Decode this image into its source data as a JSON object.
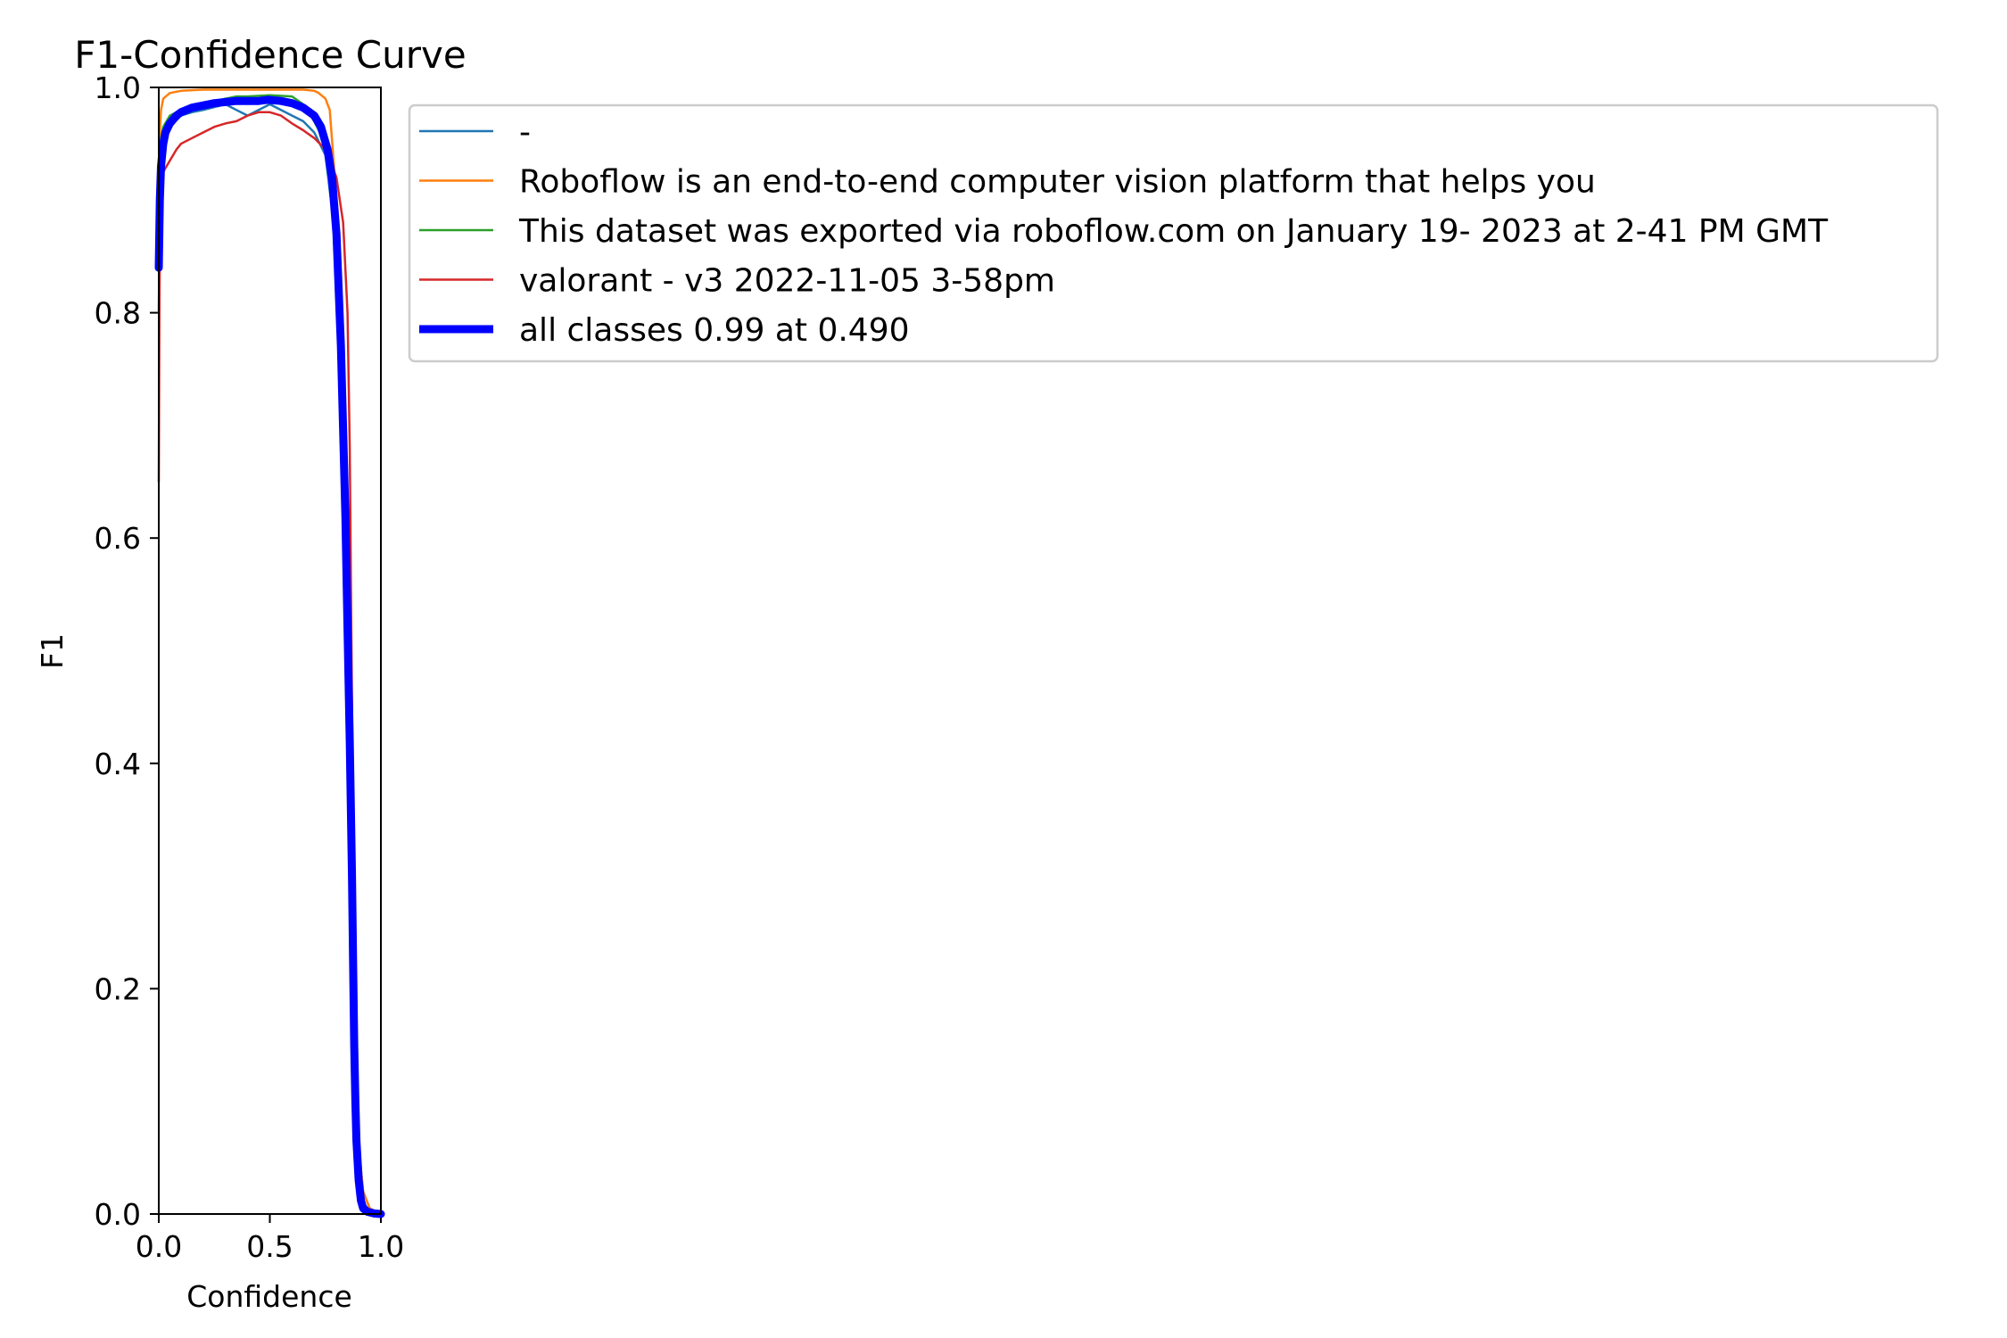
{
  "chart_data": {
    "type": "line",
    "title": "F1-Confidence Curve",
    "xlabel": "Confidence",
    "ylabel": "F1",
    "xlim": [
      0,
      1
    ],
    "ylim": [
      0,
      1
    ],
    "xticks": [
      0.0,
      0.5,
      1.0
    ],
    "yticks": [
      0.0,
      0.2,
      0.4,
      0.6,
      0.8,
      1.0
    ],
    "xtick_labels": [
      "0.0",
      "0.5",
      "1.0"
    ],
    "ytick_labels": [
      "0.0",
      "0.2",
      "0.4",
      "0.6",
      "0.8",
      "1.0"
    ],
    "legend_position": "outside right, top",
    "grid": false,
    "series": [
      {
        "name": "-",
        "color": "#1f77b4",
        "x": [
          0.0,
          0.005,
          0.02,
          0.05,
          0.1,
          0.15,
          0.2,
          0.3,
          0.35,
          0.4,
          0.5,
          0.6,
          0.65,
          0.7,
          0.75,
          0.8,
          0.83,
          0.85,
          0.87,
          0.88,
          0.9,
          0.92,
          0.95,
          1.0
        ],
        "y": [
          0.8,
          0.9,
          0.95,
          0.965,
          0.975,
          0.978,
          0.98,
          0.985,
          0.98,
          0.975,
          0.985,
          0.975,
          0.97,
          0.96,
          0.94,
          0.86,
          0.7,
          0.5,
          0.3,
          0.18,
          0.06,
          0.02,
          0.005,
          0.0
        ]
      },
      {
        "name": "Roboflow is an end-to-end computer vision platform that helps you",
        "color": "#ff7f0e",
        "x": [
          0.0,
          0.005,
          0.01,
          0.02,
          0.05,
          0.1,
          0.2,
          0.3,
          0.4,
          0.5,
          0.6,
          0.65,
          0.7,
          0.72,
          0.75,
          0.77,
          0.8,
          0.82,
          0.84,
          0.86,
          0.88,
          0.9,
          0.92,
          0.95,
          1.0
        ],
        "y": [
          0.85,
          0.96,
          0.98,
          0.99,
          0.995,
          0.997,
          0.998,
          0.998,
          0.998,
          0.998,
          0.998,
          0.998,
          0.997,
          0.995,
          0.99,
          0.98,
          0.9,
          0.75,
          0.5,
          0.3,
          0.15,
          0.06,
          0.02,
          0.005,
          0.0
        ]
      },
      {
        "name": "This dataset was exported via roboflow.com on January 19- 2023 at 2-41 PM GMT",
        "color": "#2ca02c",
        "x": [
          0.0,
          0.005,
          0.01,
          0.02,
          0.05,
          0.1,
          0.2,
          0.3,
          0.35,
          0.4,
          0.5,
          0.6,
          0.65,
          0.7,
          0.75,
          0.8,
          0.83,
          0.85,
          0.87,
          0.88,
          0.89,
          0.9,
          0.92,
          0.95,
          1.0
        ],
        "y": [
          0.85,
          0.94,
          0.955,
          0.965,
          0.975,
          0.98,
          0.985,
          0.99,
          0.992,
          0.992,
          0.993,
          0.992,
          0.985,
          0.97,
          0.95,
          0.87,
          0.7,
          0.45,
          0.2,
          0.19,
          0.07,
          0.03,
          0.01,
          0.003,
          0.0
        ]
      },
      {
        "name": "valorant - v3 2022-11-05 3-58pm",
        "color": "#d62728",
        "x": [
          0.0,
          0.003,
          0.006,
          0.01,
          0.02,
          0.05,
          0.08,
          0.1,
          0.15,
          0.2,
          0.25,
          0.3,
          0.35,
          0.4,
          0.45,
          0.5,
          0.55,
          0.6,
          0.65,
          0.7,
          0.75,
          0.8,
          0.83,
          0.85,
          0.86,
          0.87,
          0.88,
          0.89,
          0.9,
          0.91,
          1.0
        ],
        "y": [
          0.65,
          0.8,
          0.9,
          0.92,
          0.925,
          0.935,
          0.945,
          0.95,
          0.955,
          0.96,
          0.965,
          0.968,
          0.97,
          0.975,
          0.978,
          0.978,
          0.975,
          0.968,
          0.962,
          0.955,
          0.945,
          0.92,
          0.88,
          0.8,
          0.68,
          0.45,
          0.25,
          0.1,
          0.03,
          0.005,
          0.0
        ]
      },
      {
        "name": "all classes 0.99 at 0.490",
        "color": "#0000ff",
        "x": [
          0.0,
          0.005,
          0.01,
          0.02,
          0.03,
          0.05,
          0.08,
          0.1,
          0.15,
          0.2,
          0.25,
          0.3,
          0.35,
          0.4,
          0.45,
          0.49,
          0.55,
          0.6,
          0.65,
          0.7,
          0.73,
          0.76,
          0.78,
          0.8,
          0.82,
          0.84,
          0.85,
          0.86,
          0.87,
          0.875,
          0.88,
          0.885,
          0.89,
          0.9,
          0.91,
          0.92,
          0.94,
          0.97,
          1.0
        ],
        "y": [
          0.84,
          0.9,
          0.93,
          0.95,
          0.96,
          0.968,
          0.975,
          0.978,
          0.982,
          0.984,
          0.986,
          0.987,
          0.988,
          0.988,
          0.988,
          0.989,
          0.988,
          0.986,
          0.982,
          0.975,
          0.965,
          0.945,
          0.92,
          0.87,
          0.77,
          0.62,
          0.52,
          0.42,
          0.3,
          0.22,
          0.15,
          0.1,
          0.065,
          0.03,
          0.012,
          0.005,
          0.002,
          0.0005,
          0.0
        ]
      }
    ]
  }
}
